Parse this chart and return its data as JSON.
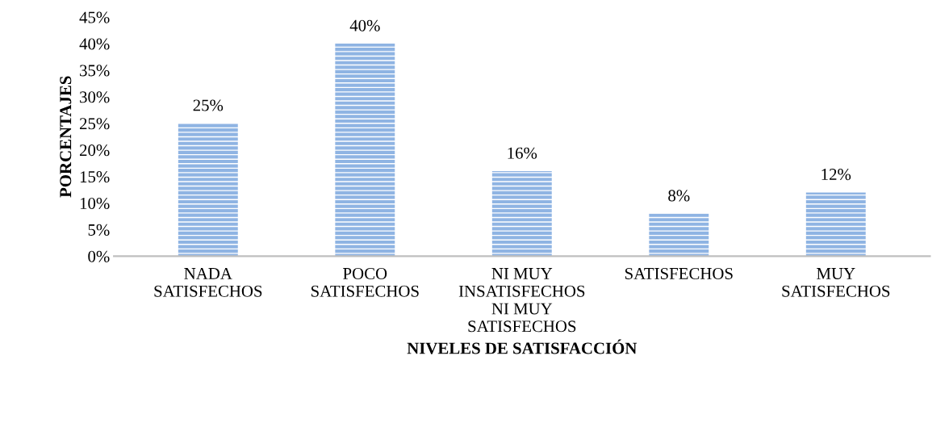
{
  "chart_data": {
    "type": "bar",
    "xlabel": "NIVELES DE SATISFACCIÓN",
    "ylabel": "PORCENTAJES",
    "categories": [
      "NADA\nSATISFECHOS",
      "POCO\nSATISFECHOS",
      "NI MUY\nINSATISFECHOS\nNI MUY\nSATISFECHOS",
      "SATISFECHOS",
      "MUY\nSATISFECHOS"
    ],
    "values": [
      25,
      40,
      16,
      8,
      12
    ],
    "value_labels": [
      "25%",
      "40%",
      "16%",
      "8%",
      "12%"
    ],
    "color": "#8fb4e3",
    "ylim": [
      0,
      45
    ],
    "yticks": [
      {
        "value": 0,
        "label": "0%"
      },
      {
        "value": 5,
        "label": "5%"
      },
      {
        "value": 10,
        "label": "10%"
      },
      {
        "value": 15,
        "label": "15%"
      },
      {
        "value": 20,
        "label": "20%"
      },
      {
        "value": 25,
        "label": "25%"
      },
      {
        "value": 30,
        "label": "30%"
      },
      {
        "value": 35,
        "label": "35%"
      },
      {
        "value": 40,
        "label": "40%"
      },
      {
        "value": 45,
        "label": "45%"
      }
    ],
    "grid": false,
    "legend": false
  }
}
